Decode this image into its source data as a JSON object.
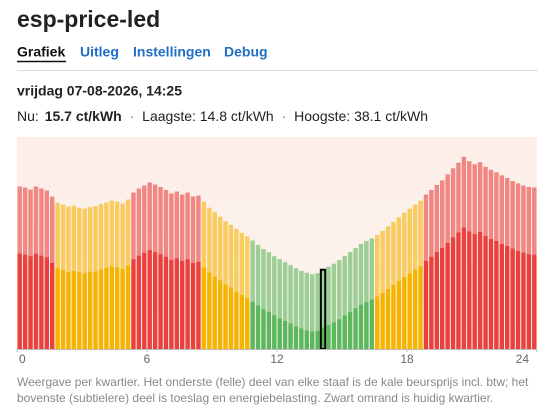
{
  "header": {
    "title": "esp-price-led",
    "tabs": [
      "Grafiek",
      "Uitleg",
      "Instellingen",
      "Debug"
    ]
  },
  "status": {
    "date": "vrijdag 07-08-2026, 14:25",
    "now_label": "Nu:",
    "now_value": "15.7 ct/kWh",
    "separator": "·",
    "low": "Laagste: 14.8 ct/kWh",
    "high": "Hoogste: 38.1 ct/kWh"
  },
  "chart_data": {
    "type": "bar",
    "stacked": true,
    "x": [
      0,
      0.25,
      0.5,
      0.75,
      1,
      1.25,
      1.5,
      1.75,
      2,
      2.25,
      2.5,
      2.75,
      3,
      3.25,
      3.5,
      3.75,
      4,
      4.25,
      4.5,
      4.75,
      5,
      5.25,
      5.5,
      5.75,
      6,
      6.25,
      6.5,
      6.75,
      7,
      7.25,
      7.5,
      7.75,
      8,
      8.25,
      8.5,
      8.75,
      9,
      9.25,
      9.5,
      9.75,
      10,
      10.25,
      10.5,
      10.75,
      11,
      11.25,
      11.5,
      11.75,
      12,
      12.25,
      12.5,
      12.75,
      13,
      13.25,
      13.5,
      13.75,
      14,
      14.25,
      14.5,
      14.75,
      15,
      15.25,
      15.5,
      15.75,
      16,
      16.25,
      16.5,
      16.75,
      17,
      17.25,
      17.5,
      17.75,
      18,
      18.25,
      18.5,
      18.75,
      19,
      19.25,
      19.5,
      19.75,
      20,
      20.25,
      20.5,
      20.75,
      21,
      21.25,
      21.5,
      21.75,
      22,
      22.25,
      22.5,
      22.75,
      23,
      23.25,
      23.5,
      23.75
    ],
    "bar_width": 0.25,
    "series": [
      {
        "values": [
          18.9,
          18.7,
          18.4,
          18.9,
          18.5,
          18.2,
          17.1,
          16.1,
          15.7,
          15.3,
          15.5,
          15.2,
          15.0,
          15.3,
          15.4,
          15.8,
          16.1,
          16.4,
          16.2,
          15.9,
          16.6,
          17.8,
          18.5,
          19.1,
          19.6,
          19.2,
          18.8,
          18.3,
          17.7,
          18.0,
          17.5,
          17.8,
          17.1,
          17.3,
          16.2,
          15.2,
          14.4,
          13.6,
          12.8,
          12.2,
          11.4,
          10.7,
          10.1,
          9.4,
          8.6,
          7.9,
          7.4,
          6.7,
          6.1,
          5.6,
          5.1,
          4.5,
          4.1,
          3.7,
          3.5,
          3.6,
          4.3,
          4.8,
          5.3,
          5.9,
          6.7,
          7.4,
          8.1,
          8.8,
          9.3,
          9.8,
          10.4,
          11.1,
          11.9,
          12.7,
          13.5,
          14.3,
          15.0,
          15.7,
          16.4,
          17.5,
          18.3,
          19.2,
          20.0,
          21.0,
          22.1,
          23.1,
          24.1,
          23.3,
          22.8,
          23.2,
          22.4,
          21.8,
          21.4,
          20.8,
          20.4,
          19.9,
          19.4,
          19.1,
          18.8,
          18.7
        ]
      },
      {
        "values": [
          13.3,
          13.3,
          13.2,
          13.3,
          13.3,
          13.2,
          13.1,
          12.9,
          12.9,
          12.9,
          12.9,
          12.8,
          12.8,
          12.8,
          12.9,
          12.9,
          12.9,
          13.0,
          13.0,
          12.9,
          13.0,
          13.2,
          13.3,
          13.3,
          13.4,
          13.4,
          13.3,
          13.2,
          13.1,
          13.2,
          13.1,
          13.2,
          13.1,
          13.1,
          13.0,
          12.8,
          12.7,
          12.6,
          12.5,
          12.4,
          12.4,
          12.3,
          12.2,
          12.1,
          12.0,
          11.9,
          11.8,
          11.7,
          11.7,
          11.6,
          11.5,
          11.5,
          11.4,
          11.4,
          11.3,
          11.4,
          11.4,
          11.5,
          11.6,
          11.7,
          11.7,
          11.8,
          11.9,
          12.0,
          12.1,
          12.1,
          12.2,
          12.3,
          12.4,
          12.5,
          12.6,
          12.7,
          12.8,
          12.9,
          13.0,
          13.1,
          13.2,
          13.3,
          13.4,
          13.6,
          13.7,
          13.8,
          14.0,
          13.9,
          13.8,
          13.8,
          13.7,
          13.7,
          13.6,
          13.6,
          13.5,
          13.4,
          13.4,
          13.3,
          13.3,
          13.3
        ]
      }
    ],
    "colors": [
      "#e8413e",
      "#e8413e",
      "#e8413e",
      "#e8413e",
      "#e8413e",
      "#e8413e",
      "#e8413e",
      "#f5b400",
      "#f5b400",
      "#f5b400",
      "#f5b400",
      "#f5b400",
      "#f5b400",
      "#f5b400",
      "#f5b400",
      "#f5b400",
      "#f5b400",
      "#f5b400",
      "#f5b400",
      "#f5b400",
      "#f5b400",
      "#e8413e",
      "#e8413e",
      "#e8413e",
      "#e8413e",
      "#e8413e",
      "#e8413e",
      "#e8413e",
      "#e8413e",
      "#e8413e",
      "#e8413e",
      "#e8413e",
      "#e8413e",
      "#e8413e",
      "#f5b400",
      "#f5b400",
      "#f5b400",
      "#f5b400",
      "#f5b400",
      "#f5b400",
      "#f5b400",
      "#f5b400",
      "#f5b400",
      "#5cb85c",
      "#5cb85c",
      "#5cb85c",
      "#5cb85c",
      "#5cb85c",
      "#5cb85c",
      "#5cb85c",
      "#5cb85c",
      "#5cb85c",
      "#5cb85c",
      "#5cb85c",
      "#5cb85c",
      "#5cb85c",
      "#5cb85c",
      "#5cb85c",
      "#5cb85c",
      "#5cb85c",
      "#5cb85c",
      "#5cb85c",
      "#5cb85c",
      "#5cb85c",
      "#5cb85c",
      "#5cb85c",
      "#f5b400",
      "#f5b400",
      "#f5b400",
      "#f5b400",
      "#f5b400",
      "#f5b400",
      "#f5b400",
      "#f5b400",
      "#f5b400",
      "#e8413e",
      "#e8413e",
      "#e8413e",
      "#e8413e",
      "#e8413e",
      "#e8413e",
      "#e8413e",
      "#e8413e",
      "#e8413e",
      "#e8413e",
      "#e8413e",
      "#e8413e",
      "#e8413e",
      "#e8413e",
      "#e8413e",
      "#e8413e",
      "#e8413e",
      "#e8413e",
      "#e8413e",
      "#e8413e",
      "#e8413e"
    ],
    "upper_opacity": 0.6,
    "highlight_x": 14,
    "xlim": [
      0,
      24
    ],
    "xticks": [
      0,
      6,
      12,
      18,
      24
    ],
    "ylim": [
      0,
      42
    ]
  },
  "footnote": [
    "Weergave per kwartier. Het onderste (felle) deel van elke staaf is de kale beursprijs incl. btw; het",
    "bovenste (subtielere) deel is toeslag en energiebelasting. Zwart omrand is huidig kwartier."
  ]
}
